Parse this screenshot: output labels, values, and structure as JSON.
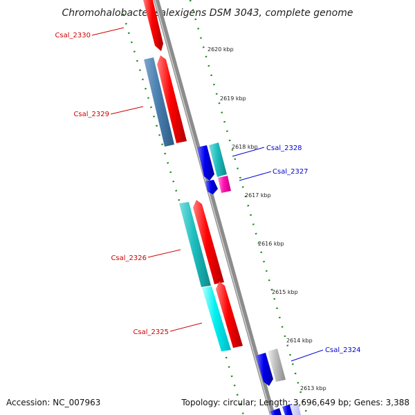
{
  "title": "Chromohalobacter salexigens DSM 3043, complete genome",
  "footer": {
    "accession": "Accession: NC_007963",
    "summary": "Topology: circular; Length: 3,696,649 bp; Genes: 3,388"
  },
  "colors": {
    "forward": "#ff0000",
    "reverse_label": "#0000cc",
    "forward_label": "#cc0000",
    "dotted_ring": "#1a8a1a",
    "backbone": "#8c8c8c"
  },
  "ticks": [
    {
      "label": "2620 kbp"
    },
    {
      "label": "2619 kbp"
    },
    {
      "label": "2618 kbp"
    },
    {
      "label": "2617 kbp"
    },
    {
      "label": "2616 kbp"
    },
    {
      "label": "2615 kbp"
    },
    {
      "label": "2614 kbp"
    },
    {
      "label": "2613 kbp"
    }
  ],
  "gene_labels": [
    {
      "id": "csal_2330",
      "text": "Csal_2330",
      "strand": "forward"
    },
    {
      "id": "csal_2329",
      "text": "Csal_2329",
      "strand": "forward"
    },
    {
      "id": "csal_2328",
      "text": "Csal_2328",
      "strand": "reverse"
    },
    {
      "id": "csal_2327",
      "text": "Csal_2327",
      "strand": "reverse"
    },
    {
      "id": "csal_2326",
      "text": "Csal_2326",
      "strand": "forward"
    },
    {
      "id": "csal_2325",
      "text": "Csal_2325",
      "strand": "forward"
    },
    {
      "id": "csal_2324",
      "text": "Csal_2324",
      "strand": "reverse"
    }
  ]
}
